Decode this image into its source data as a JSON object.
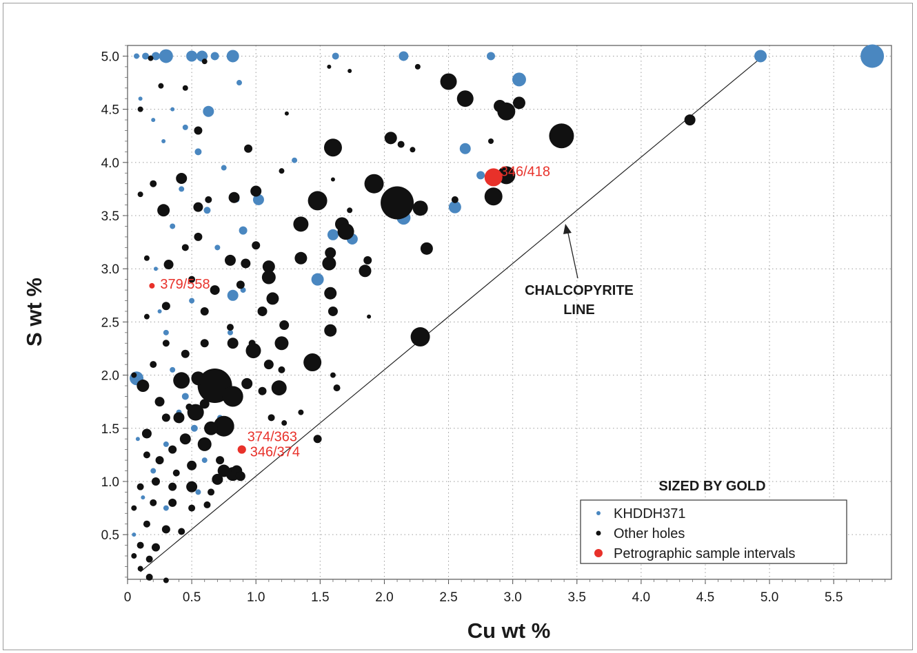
{
  "chart_data": {
    "type": "scatter",
    "title": "",
    "xlabel": "Cu wt %",
    "ylabel": "S wt %",
    "xlim": [
      0,
      5.95
    ],
    "ylim": [
      0.08,
      5.1
    ],
    "x_ticks": [
      "0",
      "0.5",
      "1.0",
      "1.5",
      "2.0",
      "2.5",
      "3.0",
      "3.5",
      "4.0",
      "4.5",
      "5.0",
      "5.5"
    ],
    "y_ticks": [
      "0.5",
      "1.0",
      "1.5",
      "2.0",
      "2.5",
      "3.0",
      "3.5",
      "4.0",
      "4.5",
      "5.0"
    ],
    "grid": true,
    "size_encoding": "gold",
    "legend": {
      "title": "SIZED BY GOLD",
      "position": "bottom-right",
      "entries": [
        {
          "label": "KHDDH371",
          "color": "#4a87c0"
        },
        {
          "label": "Other holes",
          "color": "#111111"
        },
        {
          "label": "Petrographic sample intervals",
          "color": "#e8312a"
        }
      ]
    },
    "reference_line": {
      "label_line1": "CHALCOPYRITE",
      "label_line2": "LINE",
      "from": [
        0.1,
        0.15
      ],
      "to": [
        4.95,
        5.0
      ]
    },
    "series": [
      {
        "name": "KHDDH371",
        "color": "#4a87c0",
        "points": [
          [
            0.07,
            5.0,
            4
          ],
          [
            0.14,
            5.0,
            5
          ],
          [
            0.22,
            5.0,
            6
          ],
          [
            0.3,
            5.0,
            10
          ],
          [
            0.5,
            5.0,
            8
          ],
          [
            0.58,
            5.0,
            8
          ],
          [
            0.68,
            5.0,
            6
          ],
          [
            0.82,
            5.0,
            9
          ],
          [
            1.62,
            5.0,
            5
          ],
          [
            2.15,
            5.0,
            7
          ],
          [
            2.83,
            5.0,
            6
          ],
          [
            4.93,
            5.0,
            9
          ],
          [
            5.8,
            5.0,
            17
          ],
          [
            3.05,
            4.78,
            10
          ],
          [
            0.63,
            4.48,
            8
          ],
          [
            2.63,
            4.13,
            8
          ],
          [
            2.75,
            3.88,
            6
          ],
          [
            0.87,
            4.75,
            4
          ],
          [
            1.3,
            4.02,
            4
          ],
          [
            0.75,
            3.95,
            4
          ],
          [
            0.55,
            4.1,
            5
          ],
          [
            0.45,
            4.33,
            4
          ],
          [
            0.2,
            4.4,
            3
          ],
          [
            0.1,
            4.6,
            3
          ],
          [
            0.35,
            4.5,
            3
          ],
          [
            0.28,
            4.2,
            3
          ],
          [
            1.02,
            3.65,
            8
          ],
          [
            2.15,
            3.48,
            10
          ],
          [
            2.55,
            3.58,
            9
          ],
          [
            1.6,
            3.32,
            8
          ],
          [
            1.75,
            3.28,
            8
          ],
          [
            0.9,
            3.36,
            6
          ],
          [
            1.48,
            2.9,
            9
          ],
          [
            0.82,
            2.75,
            8
          ],
          [
            0.62,
            3.55,
            5
          ],
          [
            0.85,
            3.65,
            4
          ],
          [
            0.42,
            3.75,
            4
          ],
          [
            0.7,
            3.2,
            4
          ],
          [
            0.35,
            3.4,
            4
          ],
          [
            0.22,
            3.0,
            3
          ],
          [
            0.5,
            2.7,
            4
          ],
          [
            0.25,
            2.6,
            3
          ],
          [
            0.3,
            2.4,
            4
          ],
          [
            0.8,
            2.4,
            4
          ],
          [
            0.65,
            2.0,
            5
          ],
          [
            0.07,
            1.97,
            10
          ],
          [
            0.45,
            1.8,
            5
          ],
          [
            0.52,
            1.5,
            5
          ],
          [
            0.3,
            1.35,
            4
          ],
          [
            0.4,
            1.65,
            4
          ],
          [
            0.6,
            1.2,
            4
          ],
          [
            0.2,
            1.1,
            4
          ],
          [
            0.55,
            0.9,
            4
          ],
          [
            0.3,
            0.75,
            4
          ],
          [
            0.12,
            0.85,
            3
          ],
          [
            0.05,
            0.5,
            3
          ],
          [
            0.08,
            1.4,
            3
          ],
          [
            0.35,
            2.05,
            4
          ],
          [
            0.72,
            1.6,
            4
          ],
          [
            0.9,
            2.8,
            4
          ]
        ]
      },
      {
        "name": "Other holes",
        "color": "#111111",
        "points": [
          [
            0.18,
            4.98,
            4
          ],
          [
            0.6,
            4.95,
            4
          ],
          [
            1.57,
            4.9,
            3
          ],
          [
            1.73,
            4.86,
            3
          ],
          [
            2.26,
            4.9,
            4
          ],
          [
            2.5,
            4.76,
            12
          ],
          [
            2.63,
            4.6,
            12
          ],
          [
            2.9,
            4.53,
            9
          ],
          [
            2.95,
            4.48,
            13
          ],
          [
            3.05,
            4.56,
            9
          ],
          [
            3.38,
            4.25,
            18
          ],
          [
            2.05,
            4.23,
            9
          ],
          [
            2.13,
            4.17,
            5
          ],
          [
            2.22,
            4.12,
            4
          ],
          [
            2.83,
            4.2,
            4
          ],
          [
            1.6,
            4.14,
            13
          ],
          [
            0.94,
            4.13,
            6
          ],
          [
            0.55,
            4.3,
            6
          ],
          [
            0.45,
            4.7,
            4
          ],
          [
            0.26,
            4.72,
            4
          ],
          [
            0.1,
            4.5,
            4
          ],
          [
            1.24,
            4.46,
            3
          ],
          [
            2.95,
            3.88,
            13
          ],
          [
            2.85,
            3.68,
            13
          ],
          [
            2.55,
            3.65,
            5
          ],
          [
            1.92,
            3.8,
            14
          ],
          [
            2.1,
            3.62,
            24
          ],
          [
            2.28,
            3.57,
            11
          ],
          [
            1.48,
            3.64,
            14
          ],
          [
            1.0,
            3.73,
            8
          ],
          [
            1.2,
            3.92,
            4
          ],
          [
            0.83,
            3.67,
            8
          ],
          [
            0.63,
            3.65,
            5
          ],
          [
            0.55,
            3.58,
            7
          ],
          [
            0.42,
            3.85,
            8
          ],
          [
            0.28,
            3.55,
            9
          ],
          [
            0.2,
            3.8,
            5
          ],
          [
            0.1,
            3.7,
            4
          ],
          [
            1.6,
            3.84,
            3
          ],
          [
            1.73,
            3.55,
            4
          ],
          [
            1.67,
            3.42,
            10
          ],
          [
            1.7,
            3.35,
            12
          ],
          [
            1.35,
            3.42,
            11
          ],
          [
            1.35,
            3.1,
            9
          ],
          [
            1.58,
            3.15,
            8
          ],
          [
            1.57,
            3.05,
            10
          ],
          [
            2.33,
            3.19,
            9
          ],
          [
            1.0,
            3.22,
            6
          ],
          [
            0.92,
            3.05,
            7
          ],
          [
            1.1,
            3.02,
            9
          ],
          [
            1.1,
            2.92,
            10
          ],
          [
            0.8,
            3.08,
            8
          ],
          [
            0.55,
            3.3,
            6
          ],
          [
            0.45,
            3.2,
            5
          ],
          [
            0.32,
            3.04,
            7
          ],
          [
            0.15,
            3.1,
            4
          ],
          [
            1.87,
            3.08,
            6
          ],
          [
            1.85,
            2.98,
            9
          ],
          [
            1.58,
            2.77,
            9
          ],
          [
            1.6,
            2.6,
            7
          ],
          [
            1.13,
            2.72,
            9
          ],
          [
            1.05,
            2.6,
            7
          ],
          [
            0.97,
            2.3,
            5
          ],
          [
            0.88,
            2.85,
            6
          ],
          [
            0.68,
            2.8,
            7
          ],
          [
            0.6,
            2.6,
            6
          ],
          [
            0.5,
            2.9,
            5
          ],
          [
            0.3,
            2.65,
            6
          ],
          [
            0.15,
            2.55,
            4
          ],
          [
            1.88,
            2.55,
            3
          ],
          [
            1.58,
            2.42,
            9
          ],
          [
            1.22,
            2.47,
            7
          ],
          [
            1.2,
            2.3,
            10
          ],
          [
            0.98,
            2.23,
            11
          ],
          [
            2.28,
            2.36,
            14
          ],
          [
            1.44,
            2.12,
            13
          ],
          [
            1.1,
            2.1,
            7
          ],
          [
            1.2,
            2.05,
            5
          ],
          [
            0.82,
            2.3,
            8
          ],
          [
            0.8,
            2.45,
            5
          ],
          [
            0.6,
            2.3,
            6
          ],
          [
            0.45,
            2.2,
            6
          ],
          [
            0.3,
            2.3,
            5
          ],
          [
            0.2,
            2.1,
            5
          ],
          [
            0.05,
            2.0,
            4
          ],
          [
            1.6,
            2.0,
            4
          ],
          [
            0.68,
            1.9,
            25
          ],
          [
            0.82,
            1.8,
            15
          ],
          [
            0.42,
            1.95,
            12
          ],
          [
            0.55,
            1.97,
            10
          ],
          [
            1.18,
            1.88,
            11
          ],
          [
            0.93,
            1.92,
            8
          ],
          [
            1.05,
            1.85,
            6
          ],
          [
            0.12,
            1.9,
            9
          ],
          [
            0.25,
            1.75,
            7
          ],
          [
            0.3,
            1.6,
            6
          ],
          [
            0.4,
            1.6,
            8
          ],
          [
            0.53,
            1.65,
            12
          ],
          [
            0.75,
            1.52,
            15
          ],
          [
            0.65,
            1.5,
            10
          ],
          [
            0.45,
            1.4,
            8
          ],
          [
            0.15,
            1.45,
            7
          ],
          [
            0.35,
            1.3,
            6
          ],
          [
            0.6,
            1.35,
            10
          ],
          [
            0.5,
            1.15,
            7
          ],
          [
            0.25,
            1.2,
            6
          ],
          [
            0.72,
            1.2,
            6
          ],
          [
            0.75,
            1.1,
            9
          ],
          [
            0.82,
            1.07,
            10
          ],
          [
            0.85,
            1.1,
            8
          ],
          [
            0.88,
            1.05,
            7
          ],
          [
            0.7,
            1.02,
            8
          ],
          [
            0.5,
            0.95,
            8
          ],
          [
            0.35,
            0.95,
            6
          ],
          [
            0.22,
            1.0,
            6
          ],
          [
            0.1,
            0.95,
            5
          ],
          [
            0.2,
            0.8,
            5
          ],
          [
            0.35,
            0.8,
            6
          ],
          [
            0.5,
            0.75,
            5
          ],
          [
            0.65,
            0.9,
            5
          ],
          [
            0.15,
            0.6,
            5
          ],
          [
            0.3,
            0.55,
            6
          ],
          [
            0.42,
            0.53,
            5
          ],
          [
            0.1,
            0.4,
            5
          ],
          [
            0.22,
            0.38,
            6
          ],
          [
            0.05,
            0.3,
            4
          ],
          [
            0.17,
            0.27,
            5
          ],
          [
            0.1,
            0.18,
            4
          ],
          [
            0.17,
            0.1,
            5
          ],
          [
            0.3,
            0.07,
            4
          ],
          [
            1.48,
            1.4,
            6
          ],
          [
            1.12,
            1.6,
            5
          ],
          [
            1.35,
            1.65,
            4
          ],
          [
            1.63,
            1.88,
            5
          ],
          [
            0.6,
            1.73,
            7
          ],
          [
            0.38,
            1.08,
            5
          ],
          [
            0.15,
            1.25,
            5
          ],
          [
            4.38,
            4.4,
            8
          ],
          [
            0.62,
            0.78,
            5
          ],
          [
            0.05,
            0.75,
            4
          ],
          [
            1.22,
            1.55,
            4
          ],
          [
            0.48,
            1.7,
            5
          ]
        ]
      },
      {
        "name": "Petrographic sample intervals",
        "color": "#e8312a",
        "points": [
          [
            2.85,
            3.86,
            13,
            "346/418"
          ],
          [
            0.19,
            2.84,
            4,
            "379/558"
          ],
          [
            0.89,
            1.3,
            6,
            "374/363"
          ],
          [
            0.89,
            1.3,
            6,
            "346/374"
          ]
        ]
      }
    ]
  }
}
